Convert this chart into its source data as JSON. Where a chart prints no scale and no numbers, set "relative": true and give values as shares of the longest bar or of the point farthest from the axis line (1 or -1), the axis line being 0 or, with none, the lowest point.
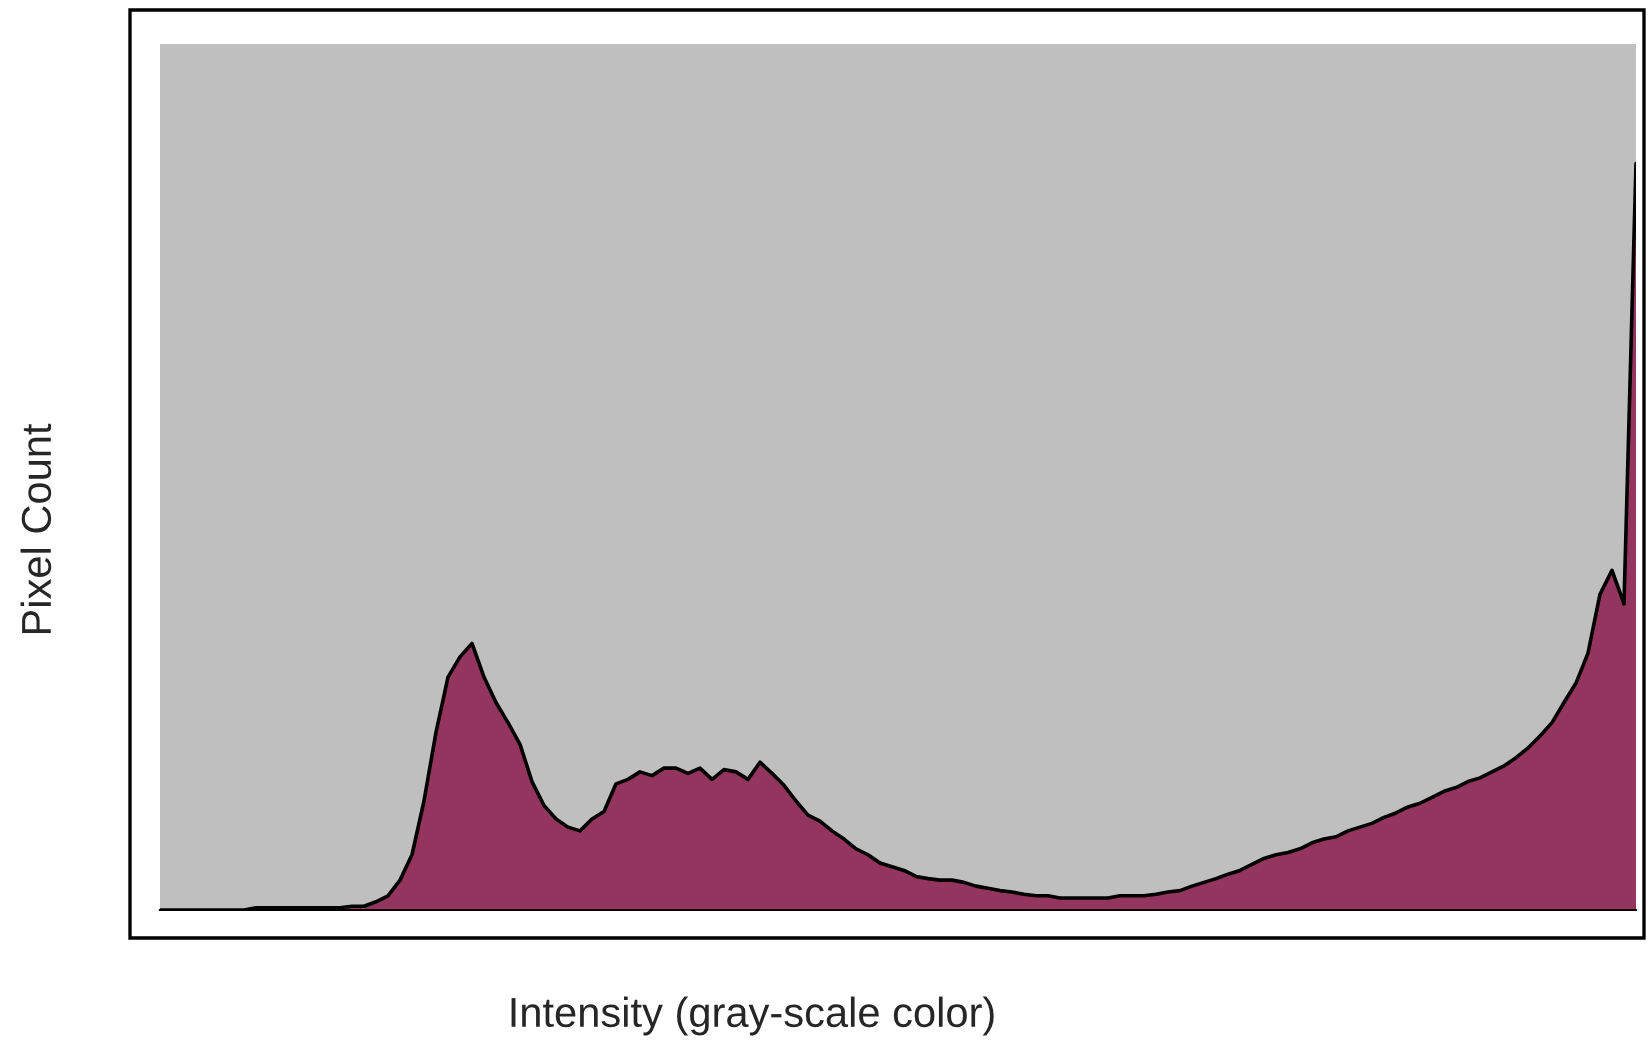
{
  "chart_data": {
    "type": "area",
    "relative": true,
    "xlabel": "Intensity (gray-scale color)",
    "ylabel": "Pixel Count",
    "categories": [
      null,
      null,
      null,
      null,
      null,
      null,
      null,
      null,
      null,
      null,
      null,
      null,
      null,
      null,
      null,
      null,
      null,
      null,
      null,
      null,
      null,
      null,
      null,
      null,
      null,
      null,
      null,
      null,
      null,
      null,
      null,
      null,
      null,
      null,
      null,
      null,
      null,
      null,
      null,
      null,
      null,
      null,
      null,
      null,
      null,
      null,
      null,
      null,
      null,
      null,
      null,
      null,
      null,
      null,
      null,
      null,
      null,
      null,
      null,
      null,
      null,
      null,
      null,
      null,
      null,
      null,
      null,
      null,
      null,
      null,
      null,
      null,
      null,
      null,
      null,
      null,
      null,
      null,
      null,
      null,
      null,
      null,
      null,
      null,
      null,
      null,
      null,
      null,
      null,
      null,
      null,
      null,
      null,
      null,
      null,
      null,
      null,
      null,
      null,
      null,
      null,
      null,
      null,
      null,
      null,
      null,
      null,
      null,
      null,
      null,
      null,
      null,
      null,
      null,
      null,
      null,
      null,
      null,
      null,
      null,
      null,
      null,
      null,
      null
    ],
    "series": [
      {
        "color": "#943560",
        "values": [
          0,
          0,
          0,
          0,
          0,
          0,
          0,
          0,
          0.003,
          0.003,
          0.003,
          0.003,
          0.003,
          0.003,
          0.003,
          0.003,
          0.005,
          0.005,
          0.011,
          0.019,
          0.04,
          0.074,
          0.146,
          0.238,
          0.312,
          0.339,
          0.357,
          0.312,
          0.278,
          0.251,
          0.222,
          0.172,
          0.14,
          0.122,
          0.111,
          0.106,
          0.122,
          0.132,
          0.169,
          0.175,
          0.185,
          0.18,
          0.19,
          0.19,
          0.183,
          0.19,
          0.175,
          0.188,
          0.185,
          0.175,
          0.198,
          0.183,
          0.167,
          0.146,
          0.127,
          0.119,
          0.106,
          0.095,
          0.082,
          0.074,
          0.063,
          0.058,
          0.053,
          0.045,
          0.042,
          0.04,
          0.04,
          0.037,
          0.032,
          0.029,
          0.026,
          0.024,
          0.021,
          0.019,
          0.019,
          0.016,
          0.016,
          0.016,
          0.016,
          0.016,
          0.019,
          0.019,
          0.019,
          0.021,
          0.024,
          0.026,
          0.032,
          0.037,
          0.042,
          0.048,
          0.053,
          0.061,
          0.069,
          0.074,
          0.077,
          0.082,
          0.09,
          0.095,
          0.098,
          0.106,
          0.111,
          0.116,
          0.124,
          0.13,
          0.138,
          0.143,
          0.151,
          0.159,
          0.164,
          0.172,
          0.177,
          0.185,
          0.193,
          0.204,
          0.217,
          0.233,
          0.251,
          0.278,
          0.304,
          0.344,
          0.423,
          0.455,
          0.41,
          1
        ]
      }
    ]
  }
}
